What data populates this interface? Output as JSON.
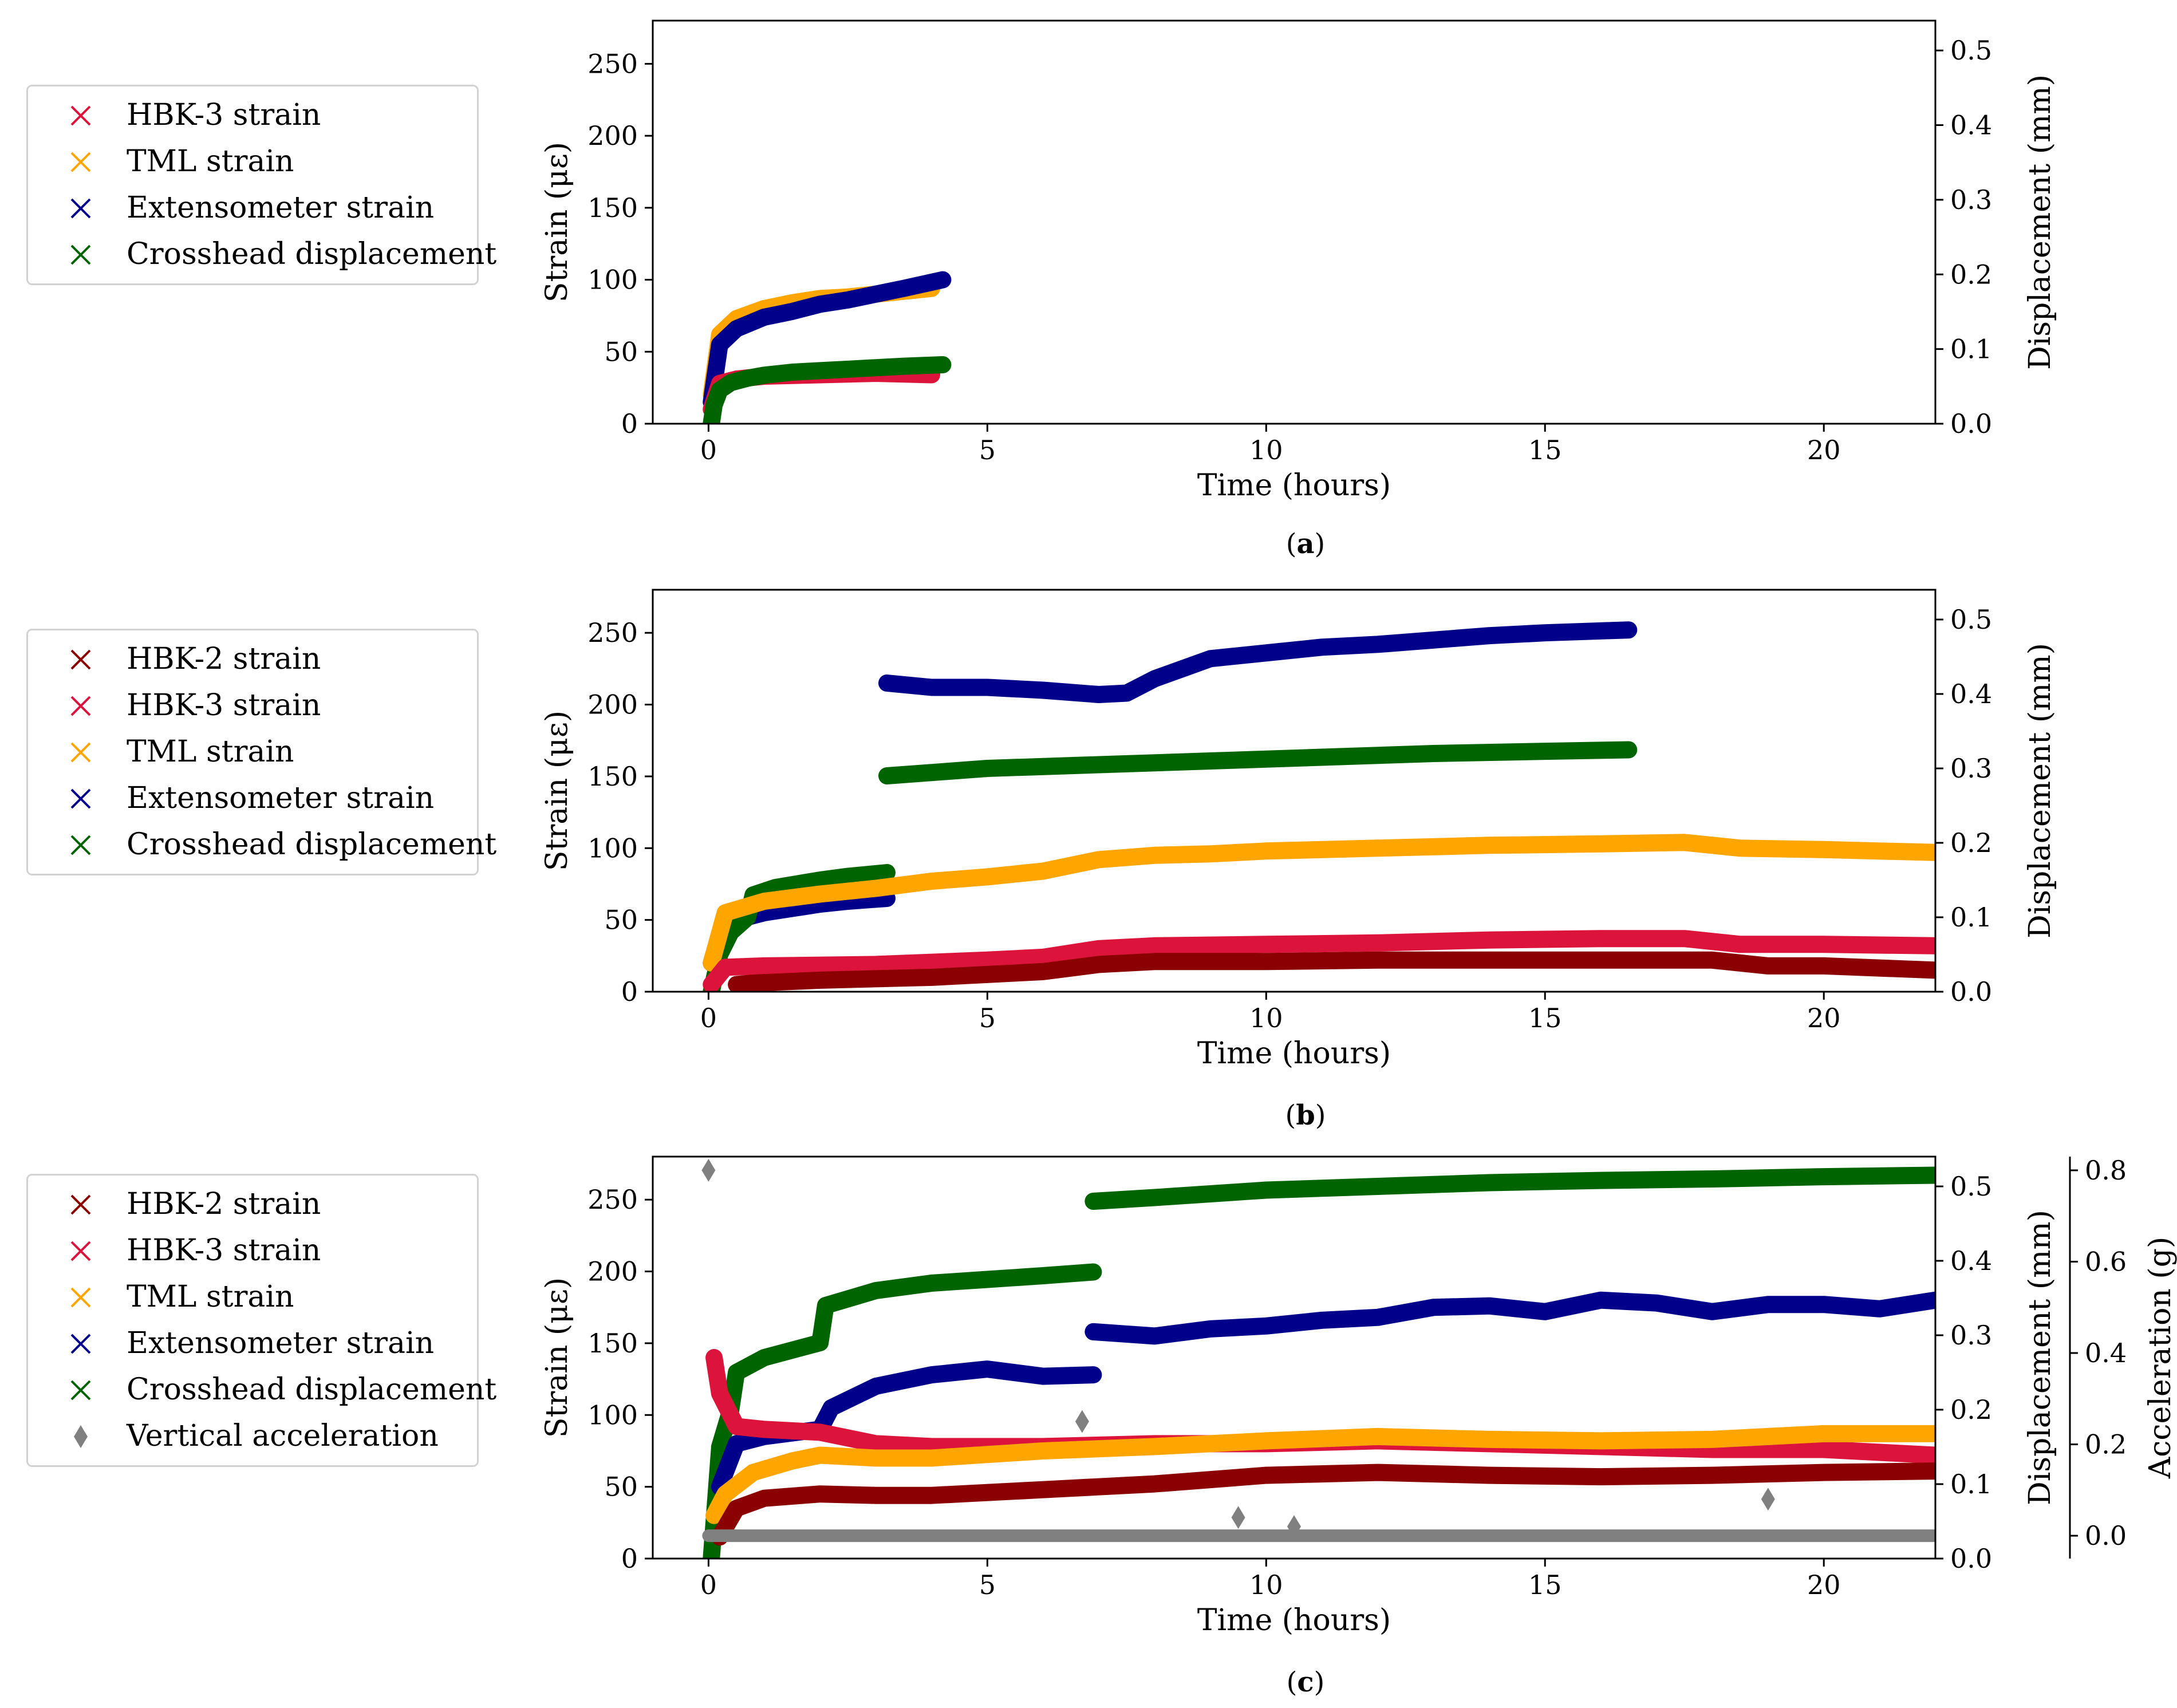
{
  "colors": {
    "hbk2": "#8b0000",
    "hbk3": "#dc143c",
    "tml": "#ffa500",
    "ext": "#00008b",
    "cross": "#006400",
    "acc": "#808080"
  },
  "chart_data": [
    {
      "id": "a",
      "type": "scatter",
      "caption_open": "(",
      "caption_letter": "a",
      "caption_close": ")",
      "xlabel": "Time (hours)",
      "ylabel": "Strain (με)",
      "y2label": "Displacement (mm)",
      "xlim": [
        -1,
        22
      ],
      "ylim": [
        0,
        280
      ],
      "y2lim": [
        0,
        0.54
      ],
      "xticks": [
        "0",
        "5",
        "10",
        "15",
        "20"
      ],
      "yticks": [
        "0",
        "50",
        "100",
        "150",
        "200",
        "250"
      ],
      "y2ticks": [
        "0.0",
        "0.1",
        "0.2",
        "0.3",
        "0.4",
        "0.5"
      ],
      "legend": [
        {
          "label": "HBK-3 strain",
          "series": "hbk3",
          "marker": "x"
        },
        {
          "label": "TML strain",
          "series": "tml",
          "marker": "x"
        },
        {
          "label": "Extensometer strain",
          "series": "ext",
          "marker": "x"
        },
        {
          "label": "Crosshead displacement",
          "series": "cross",
          "marker": "x"
        }
      ],
      "series": [
        {
          "name": "TML strain",
          "key": "tml",
          "axis": "left",
          "x": [
            0.05,
            0.2,
            0.5,
            1,
            1.5,
            2,
            2.5,
            3,
            3.5,
            4
          ],
          "y": [
            20,
            62,
            73,
            80,
            84,
            87,
            88,
            90,
            92,
            94
          ]
        },
        {
          "name": "Extensometer strain",
          "key": "ext",
          "axis": "left",
          "x": [
            0.05,
            0.2,
            0.5,
            1,
            1.5,
            2,
            2.5,
            3,
            3.5,
            4.2
          ],
          "y": [
            15,
            55,
            66,
            74,
            78,
            83,
            86,
            90,
            94,
            100
          ]
        },
        {
          "name": "HBK-3 strain",
          "key": "hbk3",
          "axis": "left",
          "x": [
            0.05,
            0.2,
            0.5,
            1,
            2,
            3,
            4
          ],
          "y": [
            10,
            28,
            31,
            33,
            34,
            35,
            34
          ]
        },
        {
          "name": "Crosshead displacement",
          "key": "cross",
          "axis": "right",
          "x": [
            0.05,
            0.1,
            0.2,
            0.4,
            0.7,
            1,
            1.5,
            2,
            2.5,
            3,
            3.5,
            4.2
          ],
          "y": [
            0.0,
            0.025,
            0.045,
            0.055,
            0.061,
            0.065,
            0.069,
            0.071,
            0.073,
            0.075,
            0.077,
            0.079
          ]
        }
      ]
    },
    {
      "id": "b",
      "type": "scatter",
      "caption_open": "(",
      "caption_letter": "b",
      "caption_close": ")",
      "xlabel": "Time (hours)",
      "ylabel": "Strain (με)",
      "y2label": "Displacement (mm)",
      "xlim": [
        -1,
        22
      ],
      "ylim": [
        0,
        280
      ],
      "y2lim": [
        0,
        0.54
      ],
      "xticks": [
        "0",
        "5",
        "10",
        "15",
        "20"
      ],
      "yticks": [
        "0",
        "50",
        "100",
        "150",
        "200",
        "250"
      ],
      "y2ticks": [
        "0.0",
        "0.1",
        "0.2",
        "0.3",
        "0.4",
        "0.5"
      ],
      "legend": [
        {
          "label": "HBK-2 strain",
          "series": "hbk2",
          "marker": "x"
        },
        {
          "label": "HBK-3 strain",
          "series": "hbk3",
          "marker": "x"
        },
        {
          "label": "TML strain",
          "series": "tml",
          "marker": "x"
        },
        {
          "label": "Extensometer strain",
          "series": "ext",
          "marker": "x"
        },
        {
          "label": "Crosshead displacement",
          "series": "cross",
          "marker": "x"
        }
      ],
      "series": [
        {
          "name": "Extensometer strain (segment 1)",
          "key": "ext",
          "axis": "left",
          "x": [
            0.05,
            0.2,
            0.5,
            1,
            1.5,
            2,
            2.5,
            3.2
          ],
          "y": [
            20,
            40,
            50,
            55,
            58,
            61,
            63,
            65
          ]
        },
        {
          "name": "Extensometer strain (segment 2)",
          "key": "ext",
          "axis": "left",
          "x": [
            3.2,
            4,
            5,
            6,
            7,
            7.5,
            8,
            8.5,
            9,
            10,
            11,
            12,
            13,
            14,
            15,
            16.5
          ],
          "y": [
            215,
            212,
            212,
            210,
            207,
            208,
            218,
            225,
            232,
            236,
            240,
            242,
            245,
            248,
            250,
            252
          ]
        },
        {
          "name": "Crosshead displacement (segment 1)",
          "key": "cross",
          "axis": "right",
          "x": [
            0.05,
            0.2,
            0.4,
            0.7,
            0.8,
            1.2,
            2,
            2.5,
            3.2
          ],
          "y": [
            0.0,
            0.05,
            0.08,
            0.1,
            0.13,
            0.14,
            0.15,
            0.155,
            0.16
          ]
        },
        {
          "name": "Crosshead displacement (segment 2)",
          "key": "cross",
          "axis": "right",
          "x": [
            3.2,
            5,
            7,
            9,
            11,
            13,
            15,
            16.5
          ],
          "y": [
            0.29,
            0.3,
            0.305,
            0.31,
            0.315,
            0.32,
            0.323,
            0.325
          ]
        },
        {
          "name": "TML strain",
          "key": "tml",
          "axis": "left",
          "x": [
            0.05,
            0.3,
            1,
            2,
            3,
            4,
            5,
            6,
            7,
            8,
            9,
            10,
            12,
            14,
            16,
            17.5,
            18.5,
            20,
            22
          ],
          "y": [
            20,
            55,
            63,
            68,
            72,
            77,
            80,
            84,
            92,
            95,
            96,
            98,
            100,
            102,
            103,
            104,
            100,
            99,
            97
          ]
        },
        {
          "name": "HBK-3 strain",
          "key": "hbk3",
          "axis": "left",
          "x": [
            0.05,
            0.3,
            1,
            3,
            5,
            6,
            7,
            8,
            10,
            12,
            14,
            16,
            17.5,
            18.5,
            20,
            22
          ],
          "y": [
            5,
            17,
            18,
            19,
            22,
            24,
            30,
            32,
            33,
            34,
            36,
            37,
            37,
            33,
            33,
            32
          ]
        },
        {
          "name": "HBK-2 strain",
          "key": "hbk2",
          "axis": "left",
          "x": [
            0.5,
            0.8,
            2,
            4,
            6,
            7,
            8,
            10,
            12,
            14,
            16,
            18,
            19,
            20,
            22
          ],
          "y": [
            5,
            6,
            8,
            10,
            14,
            19,
            21,
            21,
            22,
            22,
            22,
            22,
            18,
            18,
            15
          ]
        }
      ]
    },
    {
      "id": "c",
      "type": "scatter",
      "caption_open": "(",
      "caption_letter": "c",
      "caption_close": ")",
      "xlabel": "Time (hours)",
      "ylabel": "Strain (με)",
      "y2label": "Displacement (mm)",
      "y3label": "Acceleration (g)",
      "xlim": [
        -1,
        22
      ],
      "ylim": [
        0,
        280
      ],
      "y2lim": [
        0,
        0.54
      ],
      "y3lim": [
        -0.05,
        0.83
      ],
      "xticks": [
        "0",
        "5",
        "10",
        "15",
        "20"
      ],
      "yticks": [
        "0",
        "50",
        "100",
        "150",
        "200",
        "250"
      ],
      "y2ticks": [
        "0.0",
        "0.1",
        "0.2",
        "0.3",
        "0.4",
        "0.5"
      ],
      "y3ticks": [
        "0.0",
        "0.2",
        "0.4",
        "0.6",
        "0.8"
      ],
      "legend": [
        {
          "label": "HBK-2 strain",
          "series": "hbk2",
          "marker": "x"
        },
        {
          "label": "HBK-3 strain",
          "series": "hbk3",
          "marker": "x"
        },
        {
          "label": "TML strain",
          "series": "tml",
          "marker": "x"
        },
        {
          "label": "Extensometer strain",
          "series": "ext",
          "marker": "x"
        },
        {
          "label": "Crosshead displacement",
          "series": "cross",
          "marker": "x"
        },
        {
          "label": "Vertical acceleration",
          "series": "acc",
          "marker": "diamond"
        }
      ],
      "series": [
        {
          "name": "Crosshead displacement (segment 1)",
          "key": "cross",
          "axis": "right",
          "x": [
            0.05,
            0.2,
            0.4,
            0.5,
            1,
            2,
            2.1,
            3,
            4,
            5,
            6,
            6.9
          ],
          "y": [
            0.0,
            0.15,
            0.2,
            0.25,
            0.27,
            0.29,
            0.34,
            0.36,
            0.37,
            0.375,
            0.38,
            0.385
          ]
        },
        {
          "name": "Crosshead displacement (segment 2)",
          "key": "cross",
          "axis": "right",
          "x": [
            6.9,
            8,
            10,
            12,
            14,
            16,
            18,
            20,
            22
          ],
          "y": [
            0.48,
            0.485,
            0.495,
            0.5,
            0.505,
            0.508,
            0.51,
            0.513,
            0.515
          ]
        },
        {
          "name": "Extensometer strain (segment 1)",
          "key": "ext",
          "axis": "left",
          "x": [
            0.2,
            0.5,
            1,
            2,
            2.2,
            3,
            4,
            5,
            6,
            6.9
          ],
          "y": [
            50,
            80,
            85,
            90,
            105,
            120,
            128,
            132,
            127,
            128
          ]
        },
        {
          "name": "Extensometer strain (segment 2)",
          "key": "ext",
          "axis": "left",
          "x": [
            6.9,
            8,
            9,
            10,
            11,
            12,
            13,
            14,
            15,
            16,
            17,
            18,
            19,
            20,
            21,
            22
          ],
          "y": [
            158,
            155,
            160,
            162,
            166,
            168,
            175,
            176,
            172,
            180,
            178,
            172,
            177,
            177,
            174,
            180
          ]
        },
        {
          "name": "HBK-3 strain",
          "key": "hbk3",
          "axis": "left",
          "x": [
            0.1,
            0.2,
            0.5,
            1,
            2,
            3,
            4,
            6,
            8,
            10,
            12,
            14,
            16,
            18,
            20,
            22
          ],
          "y": [
            140,
            115,
            92,
            90,
            88,
            80,
            78,
            78,
            80,
            80,
            82,
            80,
            78,
            76,
            76,
            72
          ]
        },
        {
          "name": "TML strain",
          "key": "tml",
          "axis": "left",
          "x": [
            0.1,
            0.3,
            0.8,
            1.5,
            2,
            3,
            4,
            6,
            8,
            10,
            12,
            14,
            16,
            18,
            20,
            22
          ],
          "y": [
            30,
            45,
            60,
            68,
            72,
            70,
            70,
            75,
            78,
            82,
            85,
            83,
            82,
            83,
            87,
            87
          ]
        },
        {
          "name": "HBK-2 strain",
          "key": "hbk2",
          "axis": "left",
          "x": [
            0.2,
            0.5,
            1,
            2,
            3,
            4,
            5,
            6,
            8,
            10,
            12,
            14,
            16,
            18,
            20,
            22
          ],
          "y": [
            15,
            35,
            42,
            45,
            44,
            44,
            46,
            48,
            52,
            58,
            60,
            58,
            57,
            58,
            60,
            61
          ]
        },
        {
          "name": "Vertical acceleration (baseline)",
          "key": "acc",
          "axis": "accel",
          "x": [
            0.0,
            22.0
          ],
          "y": [
            0.0,
            0.0
          ]
        },
        {
          "name": "Vertical acceleration (peaks)",
          "key": "acc",
          "axis": "accel",
          "points": true,
          "x": [
            0.0,
            6.7,
            9.5,
            10.5,
            19.0
          ],
          "y": [
            0.8,
            0.25,
            0.04,
            0.02,
            0.08
          ]
        }
      ]
    }
  ]
}
